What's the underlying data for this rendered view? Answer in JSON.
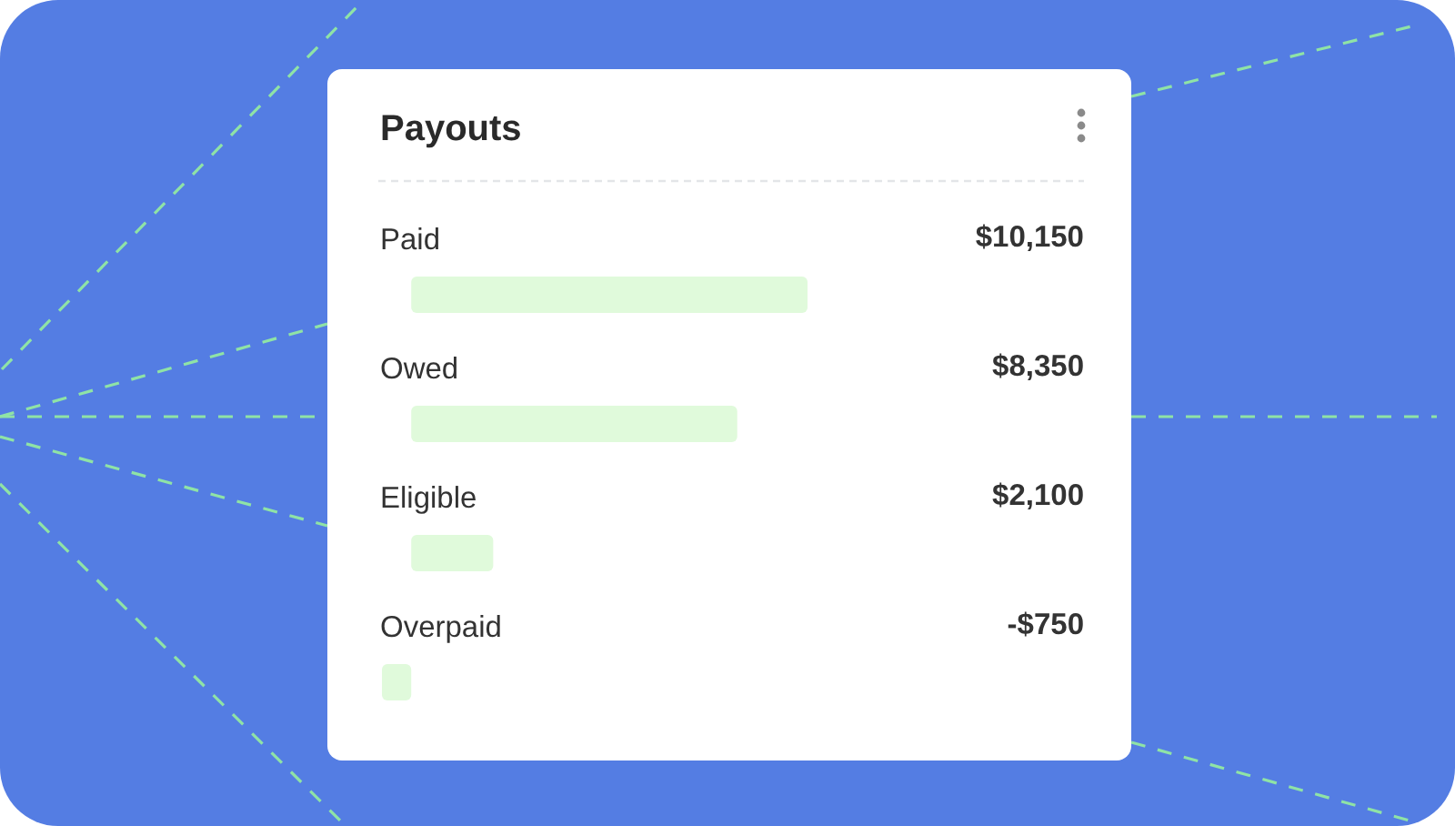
{
  "chart_data": {
    "type": "bar",
    "orientation": "horizontal",
    "title": "Payouts",
    "categories": [
      "Paid",
      "Owed",
      "Eligible",
      "Overpaid"
    ],
    "values": [
      10150,
      8350,
      2100,
      -750
    ],
    "value_labels": [
      "$10,150",
      "$8,350",
      "$2,100",
      "-$750"
    ],
    "color": "#e0fadb"
  }
}
